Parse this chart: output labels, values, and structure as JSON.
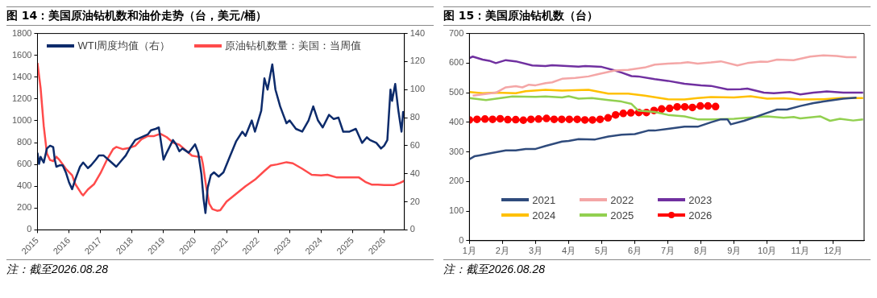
{
  "chart_data": [
    {
      "type": "line",
      "title": "图 14：美国原油钻机数和油价走势（台，美元/桶）",
      "annotations": [
        "注：截至2026.08.28"
      ],
      "legend": "top",
      "grid": false,
      "xlim": [
        2015,
        2026.64
      ],
      "xticks": [
        2015,
        2016,
        2017,
        2018,
        2019,
        2020,
        2021,
        2022,
        2023,
        2024,
        2025,
        2026
      ],
      "ylim": [
        0,
        1800
      ],
      "yticks": [
        0,
        200,
        400,
        600,
        800,
        1000,
        1200,
        1400,
        1600,
        1800
      ],
      "y2lim": [
        0,
        140
      ],
      "y2ticks": [
        0,
        20,
        40,
        60,
        80,
        100,
        120,
        140
      ],
      "series": [
        {
          "name": "WTI周度均值（右）",
          "color": "#0d2b6b",
          "axis": "y2",
          "x": [
            2015.0,
            2015.05,
            2015.1,
            2015.2,
            2015.3,
            2015.4,
            2015.5,
            2015.55,
            2015.6,
            2015.7,
            2015.8,
            2015.9,
            2016.0,
            2016.1,
            2016.2,
            2016.35,
            2016.45,
            2016.6,
            2016.7,
            2016.85,
            2016.95,
            2017.1,
            2017.3,
            2017.5,
            2017.65,
            2017.8,
            2017.95,
            2018.1,
            2018.3,
            2018.5,
            2018.6,
            2018.75,
            2018.85,
            2018.95,
            2019.0,
            2019.1,
            2019.3,
            2019.4,
            2019.5,
            2019.6,
            2019.8,
            2020.0,
            2020.1,
            2020.2,
            2020.27,
            2020.33,
            2020.4,
            2020.5,
            2020.6,
            2020.75,
            2020.9,
            2021.1,
            2021.3,
            2021.5,
            2021.6,
            2021.8,
            2021.9,
            2022.1,
            2022.2,
            2022.3,
            2022.45,
            2022.55,
            2022.7,
            2022.8,
            2022.9,
            2023.0,
            2023.2,
            2023.4,
            2023.6,
            2023.75,
            2023.9,
            2024.05,
            2024.25,
            2024.4,
            2024.55,
            2024.7,
            2024.9,
            2025.1,
            2025.3,
            2025.45,
            2025.55,
            2025.75,
            2025.9,
            2026.0,
            2026.1,
            2026.2,
            2026.25,
            2026.35,
            2026.45,
            2026.55,
            2026.6,
            2026.64
          ],
          "values": [
            55,
            47,
            52,
            48,
            58,
            60,
            59,
            50,
            45,
            46,
            46,
            41,
            34,
            29,
            36,
            45,
            48,
            44,
            46,
            50,
            53,
            53,
            49,
            45,
            49,
            53,
            59,
            64,
            66,
            68,
            71,
            72,
            73,
            58,
            50,
            55,
            64,
            61,
            56,
            58,
            55,
            61,
            55,
            40,
            22,
            12,
            30,
            39,
            41,
            38,
            41,
            52,
            63,
            70,
            67,
            78,
            70,
            85,
            108,
            100,
            118,
            100,
            88,
            82,
            76,
            78,
            72,
            70,
            78,
            88,
            78,
            73,
            82,
            79,
            80,
            70,
            70,
            72,
            62,
            66,
            64,
            62,
            58,
            60,
            64,
            100,
            92,
            104,
            85,
            70,
            84,
            80
          ]
        },
        {
          "name": "原油钻机数量：美国：当周值",
          "color": "#ff4b4b",
          "axis": "y",
          "x": [
            2015.0,
            2015.1,
            2015.2,
            2015.3,
            2015.4,
            2015.5,
            2015.6,
            2015.7,
            2015.9,
            2016.1,
            2016.2,
            2016.4,
            2016.45,
            2016.6,
            2016.8,
            2017.0,
            2017.2,
            2017.4,
            2017.5,
            2017.7,
            2017.9,
            2018.1,
            2018.3,
            2018.5,
            2018.7,
            2018.9,
            2019.1,
            2019.3,
            2019.5,
            2019.7,
            2019.9,
            2020.1,
            2020.2,
            2020.25,
            2020.35,
            2020.45,
            2020.55,
            2020.7,
            2020.8,
            2021.0,
            2021.3,
            2021.6,
            2021.9,
            2022.2,
            2022.4,
            2022.6,
            2022.9,
            2023.1,
            2023.4,
            2023.7,
            2024.0,
            2024.2,
            2024.5,
            2024.8,
            2025.0,
            2025.2,
            2025.4,
            2025.6,
            2025.8,
            2026.0,
            2026.3,
            2026.5,
            2026.64
          ],
          "values": [
            1530,
            1300,
            950,
            700,
            640,
            630,
            670,
            640,
            560,
            500,
            420,
            330,
            316,
            370,
            420,
            520,
            640,
            740,
            760,
            740,
            750,
            770,
            830,
            860,
            860,
            880,
            850,
            800,
            780,
            730,
            680,
            670,
            670,
            600,
            400,
            240,
            190,
            175,
            180,
            260,
            330,
            400,
            460,
            540,
            590,
            600,
            620,
            610,
            560,
            505,
            500,
            505,
            480,
            480,
            480,
            480,
            440,
            415,
            415,
            410,
            410,
            430,
            450
          ]
        }
      ]
    },
    {
      "type": "line",
      "title": "图 15：美国原油钻机数（台）",
      "annotations": [
        "注：截至2026.08.28"
      ],
      "legend": "bottom",
      "grid": false,
      "xlim": [
        1,
        12.93
      ],
      "xticks": [
        {
          "value": 1,
          "label": "1月"
        },
        {
          "value": 2,
          "label": "2月"
        },
        {
          "value": 3,
          "label": "3月"
        },
        {
          "value": 4,
          "label": "4月"
        },
        {
          "value": 5,
          "label": "5月"
        },
        {
          "value": 6,
          "label": "6月"
        },
        {
          "value": 7,
          "label": "7月"
        },
        {
          "value": 8,
          "label": "8月"
        },
        {
          "value": 9,
          "label": "9月"
        },
        {
          "value": 10,
          "label": "10月"
        },
        {
          "value": 11,
          "label": "11月"
        },
        {
          "value": 12,
          "label": "12月"
        }
      ],
      "ylim": [
        0,
        700
      ],
      "yticks": [
        0,
        100,
        200,
        300,
        400,
        500,
        600,
        700
      ],
      "series": [
        {
          "name": "2021",
          "color": "#2f4b7c",
          "x": [
            1.0,
            1.15,
            1.3,
            1.7,
            2.1,
            2.4,
            2.7,
            3.0,
            3.3,
            3.8,
            4.0,
            4.3,
            4.8,
            5.2,
            5.6,
            6.0,
            6.4,
            6.6,
            7.0,
            7.5,
            7.9,
            8.3,
            8.6,
            8.8,
            8.9,
            9.3,
            9.7,
            10.0,
            10.3,
            10.6,
            11.0,
            11.4,
            11.7,
            12.3,
            12.7
          ],
          "values": [
            275,
            285,
            288,
            297,
            305,
            305,
            310,
            310,
            320,
            335,
            337,
            343,
            342,
            352,
            358,
            360,
            372,
            372,
            378,
            385,
            385,
            400,
            410,
            410,
            393,
            405,
            420,
            432,
            443,
            443,
            455,
            465,
            470,
            480,
            483
          ]
        },
        {
          "name": "2022",
          "color": "#f4a6a6",
          "x": [
            1.1,
            1.8,
            2.1,
            2.4,
            2.6,
            2.8,
            3.0,
            3.3,
            3.5,
            3.8,
            4.2,
            4.6,
            4.9,
            5.4,
            5.8,
            6.3,
            6.6,
            7.0,
            7.4,
            7.6,
            7.9,
            8.3,
            8.6,
            9.1,
            9.4,
            9.8,
            10.0,
            10.3,
            10.8,
            11.3,
            11.7,
            12.1,
            12.4,
            12.7
          ],
          "values": [
            490,
            500,
            518,
            522,
            518,
            527,
            525,
            532,
            535,
            547,
            550,
            555,
            563,
            575,
            577,
            585,
            595,
            598,
            600,
            603,
            598,
            602,
            606,
            592,
            600,
            605,
            604,
            612,
            610,
            622,
            626,
            624,
            620,
            620
          ]
        },
        {
          "name": "2023",
          "color": "#7030a0",
          "x": [
            1.0,
            1.1,
            1.4,
            1.6,
            1.8,
            2.1,
            2.4,
            2.9,
            3.3,
            3.5,
            4.3,
            4.5,
            5.0,
            5.4,
            5.6,
            5.9,
            6.1,
            6.6,
            7.0,
            7.5,
            8.0,
            8.3,
            8.8,
            9.2,
            9.4,
            9.9,
            10.2,
            10.7,
            11.0,
            11.4,
            11.8,
            12.3,
            12.9
          ],
          "values": [
            617,
            622,
            612,
            608,
            600,
            610,
            606,
            592,
            590,
            593,
            588,
            590,
            587,
            575,
            568,
            556,
            555,
            546,
            540,
            530,
            525,
            523,
            511,
            512,
            514,
            500,
            498,
            502,
            494,
            500,
            504,
            500,
            500
          ]
        },
        {
          "name": "2024",
          "color": "#ffc000",
          "x": [
            1.0,
            1.4,
            1.8,
            2.4,
            2.7,
            3.3,
            3.8,
            4.6,
            5.2,
            5.8,
            6.3,
            7.0,
            7.5,
            7.9,
            8.3,
            9.0,
            9.5,
            10.0,
            10.5,
            11.0,
            11.7,
            12.2,
            12.9
          ],
          "values": [
            502,
            498,
            500,
            498,
            505,
            510,
            507,
            510,
            497,
            497,
            490,
            478,
            477,
            482,
            485,
            484,
            488,
            480,
            481,
            477,
            478,
            482,
            482
          ]
        },
        {
          "name": "2025",
          "color": "#92d050",
          "x": [
            1.0,
            1.5,
            1.9,
            2.3,
            3.0,
            3.3,
            3.8,
            4.0,
            4.3,
            4.7,
            5.2,
            5.6,
            5.9,
            6.1,
            6.6,
            7.0,
            7.5,
            7.9,
            8.3,
            9.0,
            9.6,
            10.0,
            10.5,
            10.8,
            11.0,
            11.6,
            11.9,
            12.2,
            12.6,
            12.9
          ],
          "values": [
            482,
            475,
            481,
            487,
            486,
            487,
            484,
            488,
            480,
            482,
            475,
            470,
            462,
            440,
            435,
            425,
            420,
            410,
            410,
            412,
            417,
            420,
            415,
            418,
            413,
            420,
            405,
            412,
            406,
            410
          ]
        },
        {
          "name": "2026",
          "color": "#ff0000",
          "marker": "circle",
          "x": [
            1.0,
            1.23,
            1.47,
            1.7,
            1.93,
            2.16,
            2.4,
            2.63,
            2.86,
            3.09,
            3.33,
            3.56,
            3.79,
            4.02,
            4.26,
            4.49,
            4.72,
            4.95,
            5.19,
            5.42,
            5.65,
            5.88,
            6.12,
            6.35,
            6.58,
            6.81,
            7.05,
            7.28,
            7.51,
            7.74,
            7.98,
            8.21,
            8.44
          ],
          "values": [
            408,
            410,
            411,
            410,
            412,
            409,
            409,
            407,
            410,
            411,
            413,
            410,
            410,
            410,
            410,
            408,
            408,
            410,
            415,
            425,
            430,
            432,
            433,
            433,
            440,
            445,
            447,
            452,
            452,
            450,
            455,
            455,
            453
          ]
        }
      ]
    }
  ]
}
